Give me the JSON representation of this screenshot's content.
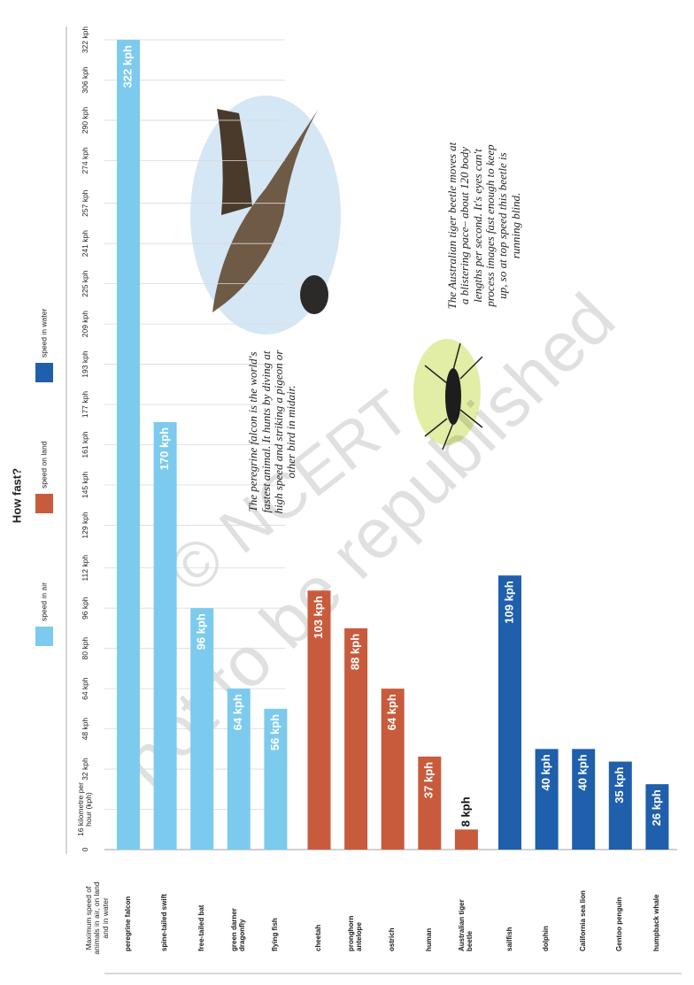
{
  "chart_data": {
    "type": "bar",
    "title": "How fast?",
    "axis_label": "Maximum speed of animals in air, on land and in water",
    "categories": [
      "peregrine falcon",
      "spine-tailed swift",
      "free-tailed bat",
      "green darner dragonfly",
      "flying fish",
      "cheetah",
      "pronghorn antelope",
      "ostrich",
      "human",
      "Australian tiger beetle",
      "sailfish",
      "dolphin",
      "California sea lion",
      "Gentoo penguin",
      "humpback whale"
    ],
    "series": [
      {
        "name": "speed in air",
        "color": "#7ccbee",
        "values": [
          322,
          170,
          96,
          64,
          56,
          null,
          null,
          null,
          null,
          null,
          null,
          null,
          null,
          null,
          null
        ],
        "value_labels": [
          "322 kph",
          "170 kph",
          "96 kph",
          "64 kph",
          "56 kph",
          null,
          null,
          null,
          null,
          null,
          null,
          null,
          null,
          null,
          null
        ]
      },
      {
        "name": "speed on land",
        "color": "#c95b3d",
        "values": [
          null,
          null,
          null,
          null,
          null,
          103,
          88,
          64,
          37,
          8,
          null,
          null,
          null,
          null,
          null
        ],
        "value_labels": [
          null,
          null,
          null,
          null,
          null,
          "103 kph",
          "88 kph",
          "64 kph",
          "37 kph",
          "8 kph",
          null,
          null,
          null,
          null,
          null
        ]
      },
      {
        "name": "speed in water",
        "color": "#1f5fab",
        "values": [
          null,
          null,
          null,
          null,
          null,
          null,
          null,
          null,
          null,
          null,
          109,
          40,
          40,
          35,
          26
        ],
        "value_labels": [
          null,
          null,
          null,
          null,
          null,
          null,
          null,
          null,
          null,
          null,
          "109 kph",
          "40 kph",
          "40 kph",
          "35 kph",
          "26 kph"
        ]
      }
    ],
    "xlim": [
      0,
      322
    ],
    "xticks": [
      0,
      {
        "value": 16,
        "label": "16 kilometre per hour (kph)"
      },
      {
        "value": 32,
        "label": "32 kph"
      },
      {
        "value": 48,
        "label": "48 kph"
      },
      {
        "value": 64,
        "label": "64 kph"
      },
      {
        "value": 80,
        "label": "80 kph"
      },
      {
        "value": 96,
        "label": "96 kph"
      },
      {
        "value": 112,
        "label": "112 kph"
      },
      {
        "value": 129,
        "label": "129 kph"
      },
      {
        "value": 145,
        "label": "145 kph"
      },
      {
        "value": 161,
        "label": "161 kph"
      },
      {
        "value": 177,
        "label": "177 kph"
      },
      {
        "value": 193,
        "label": "193 kph"
      },
      {
        "value": 209,
        "label": "209 kph"
      },
      {
        "value": 225,
        "label": "225 kph"
      },
      {
        "value": 241,
        "label": "241 kph"
      },
      {
        "value": 257,
        "label": "257 kph"
      },
      {
        "value": 274,
        "label": "274 kph"
      },
      {
        "value": 290,
        "label": "290 kph"
      },
      {
        "value": 306,
        "label": "306 kph"
      },
      {
        "value": 322,
        "label": "322 kph"
      }
    ],
    "grid": true,
    "annotations": [
      "The peregrine falcon is the world's fastest animal. It hunts by diving at high speed and striking a pigeon or other bird in midair.",
      "The Australian tiger beetle moves at a blistering pace– about 120 body lengths per second. It's eyes can't process images fast enough to keep up, so at top speed this beetle is running blind."
    ],
    "watermark": [
      "© NCERT",
      "not to be republished"
    ]
  }
}
